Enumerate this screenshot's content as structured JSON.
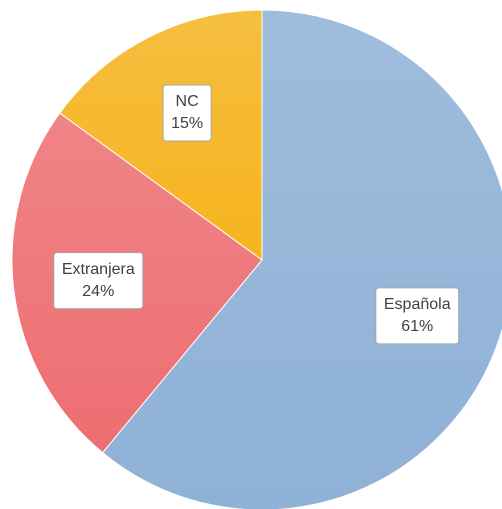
{
  "chart_data": {
    "type": "pie",
    "categories": [
      "Española",
      "Extranjera",
      "NC"
    ],
    "values": [
      61,
      24,
      15
    ],
    "value_labels": [
      "61%",
      "24%",
      "15%"
    ],
    "colors": [
      "#8eb1d6",
      "#ed6e71",
      "#f5b31e"
    ]
  }
}
